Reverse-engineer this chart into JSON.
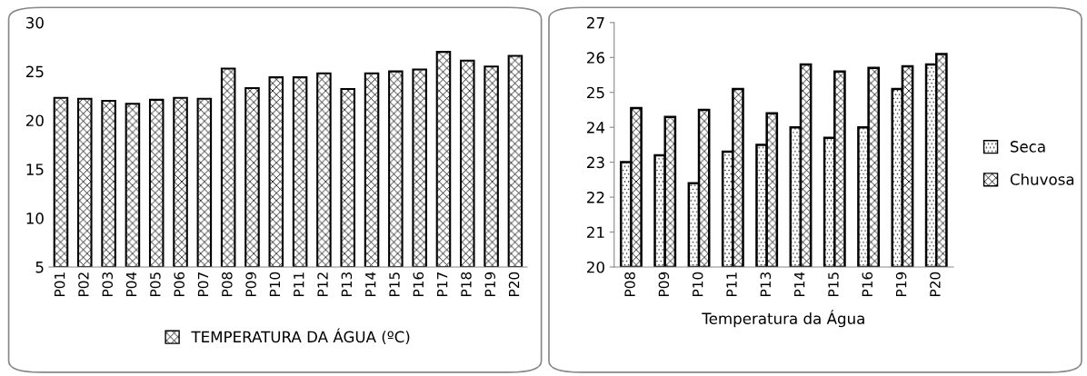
{
  "chart_data": [
    {
      "type": "bar",
      "categories": [
        "P01",
        "P02",
        "P03",
        "P04",
        "P05",
        "P06",
        "P07",
        "P08",
        "P09",
        "P10",
        "P11",
        "P12",
        "P13",
        "P14",
        "P15",
        "P16",
        "P17",
        "P18",
        "P19",
        "P20"
      ],
      "series": [
        {
          "name": "TEMPERATURA DA ÁGUA (ºC)",
          "color": "#000000",
          "values": [
            22.3,
            22.2,
            22.0,
            21.7,
            22.1,
            22.3,
            22.2,
            25.3,
            23.3,
            24.4,
            24.4,
            24.8,
            23.2,
            24.8,
            25.0,
            25.2,
            27.0,
            26.1,
            25.5,
            26.6
          ]
        }
      ],
      "ylim": [
        5,
        30
      ],
      "yticks": [
        5,
        10,
        15,
        20,
        25,
        30
      ],
      "grid": false,
      "legend": "bottom"
    },
    {
      "type": "bar",
      "categories": [
        "P08",
        "P09",
        "P10",
        "P11",
        "P13",
        "P14",
        "P15",
        "P16",
        "P19",
        "P20"
      ],
      "xlabel": "Temperatura da Água",
      "series": [
        {
          "name": "Seca",
          "color": "#000000",
          "values": [
            23.0,
            23.2,
            22.4,
            23.3,
            23.5,
            24.0,
            23.7,
            24.0,
            25.1,
            25.8
          ]
        },
        {
          "name": "Chuvosa",
          "color": "#000000",
          "values": [
            24.55,
            24.3,
            24.5,
            25.1,
            24.4,
            25.8,
            25.6,
            25.7,
            25.75,
            26.1
          ]
        }
      ],
      "ylim": [
        20,
        27
      ],
      "yticks": [
        20,
        21,
        22,
        23,
        24,
        25,
        26,
        27
      ],
      "grid": false,
      "legend": "right"
    }
  ]
}
